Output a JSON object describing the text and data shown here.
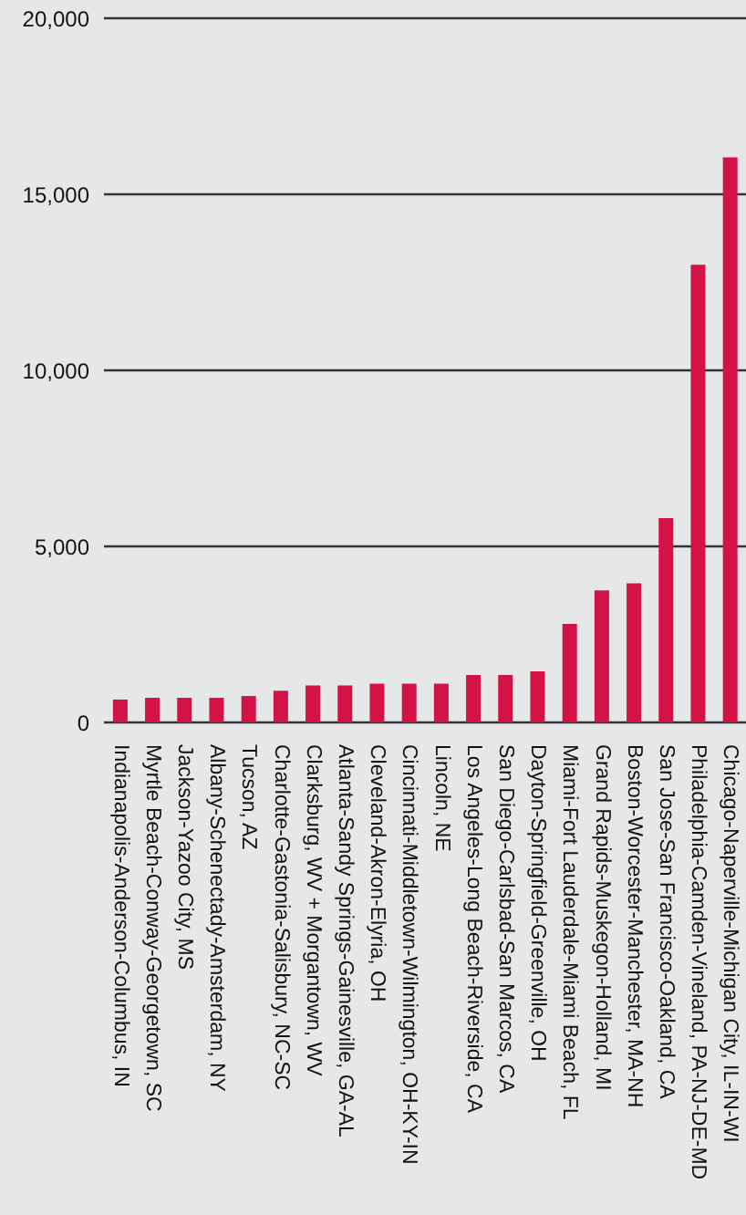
{
  "chart_data": {
    "type": "bar",
    "categories": [
      "Indianapolis-Anderson-Columbus, IN",
      "Myrtle Beach-Conway-Georgetown, SC",
      "Jackson-Yazoo City, MS",
      "Albany-Schenectady-Amsterdam, NY",
      "Tucson, AZ",
      "Charlotte-Gastonia-Salisbury, NC-SC",
      "Clarksburg, WV + Morgantown, WV",
      "Atlanta-Sandy Springs-Gainesville, GA-AL",
      "Cleveland-Akron-Elyria, OH",
      "Cincinnati-Middletown-Wilmington, OH-KY-IN",
      "Lincoln, NE",
      "Los Angeles-Long Beach-Riverside, CA",
      "San Diego-Carlsbad-San Marcos, CA",
      "Dayton-Springfield-Greenville, OH",
      "Miami-Fort Lauderdale-Miami Beach, FL",
      "Grand Rapids-Muskegon-Holland, MI",
      "Boston-Worcester-Manchester, MA-NH",
      "San Jose-San Francisco-Oakland, CA",
      "Philadelphia-Camden-Vineland, PA-NJ-DE-MD",
      "Chicago-Naperville-Michigan City, IL-IN-WI"
    ],
    "values": [
      650,
      700,
      700,
      700,
      750,
      900,
      1050,
      1050,
      1100,
      1100,
      1100,
      1350,
      1350,
      1450,
      2800,
      3750,
      3950,
      5800,
      13000,
      16050
    ],
    "color": "#d31245",
    "ylim": [
      0,
      20000
    ],
    "yticks": [
      0,
      {
        "value": 5000,
        "label": "5,000"
      },
      {
        "value": 10000,
        "label": "10,000"
      },
      {
        "value": 15000,
        "label": "15,000"
      },
      {
        "value": 20000,
        "label": "20,000"
      }
    ],
    "grid": "y",
    "legend": false
  }
}
